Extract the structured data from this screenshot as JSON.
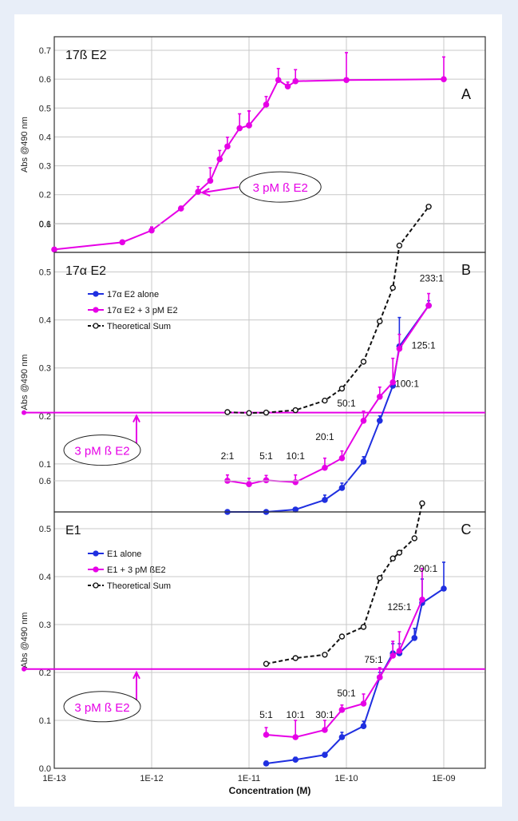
{
  "colors": {
    "background": "#e8eef8",
    "magenta": "#e600e6",
    "blue": "#1f2fe0",
    "black": "#111111",
    "grid": "#c8c8c8"
  },
  "figure": {
    "ylabel": "Abs @490 nm",
    "xlabel": "Concentration (M)",
    "x_ticks": [
      "1E-13",
      "1E-12",
      "1E-11",
      "1E-10",
      "1E-09"
    ],
    "y_tick_labels": {
      "A": [
        "0.1",
        "0.2",
        "0.3",
        "0.4",
        "0.5",
        "0.6",
        "0.7"
      ],
      "B": [
        "0.1",
        "0.2",
        "0.3",
        "0.4",
        "0.5",
        "0.6"
      ],
      "C": [
        "0.0",
        "0.1",
        "0.2",
        "0.3",
        "0.4",
        "0.5",
        "0.6"
      ]
    }
  },
  "chart_data": [
    {
      "type": "line",
      "panel_letter": "A",
      "title": "17ß E2",
      "ylabel": "Abs @490 nm",
      "xscale": "log",
      "xlim": [
        1e-13,
        1e-09
      ],
      "ylim": [
        0,
        0.7
      ],
      "grid": true,
      "series": [
        {
          "color": "#e600e6",
          "x": [
            1e-13,
            5e-13,
            1e-12,
            2e-12,
            3e-12,
            4e-12,
            5e-12,
            6e-12,
            8e-12,
            1e-11,
            1e-11,
            1.5e-11,
            2e-11,
            2.5e-11,
            3e-11,
            1e-10,
            1e-09
          ],
          "y": [
            0.01,
            0.035,
            0.076,
            0.152,
            0.21,
            0.248,
            0.323,
            0.367,
            0.43,
            0.44,
            0.44,
            0.512,
            0.597,
            0.575,
            0.593,
            0.597,
            0.6
          ],
          "err": [
            0,
            0,
            0.012,
            0.008,
            0.018,
            0.045,
            0.03,
            0.032,
            0.05,
            0.05,
            0.05,
            0.028,
            0.04,
            0.015,
            0.04,
            0.095,
            0.077
          ]
        }
      ],
      "annotations": [
        {
          "text": "3 pM ß E2",
          "points_to": [
            3e-12,
            0.21
          ]
        }
      ]
    },
    {
      "type": "line",
      "panel_letter": "B",
      "title": "17α E2",
      "ylabel": "Abs @490 nm",
      "xscale": "log",
      "xlim": [
        1e-13,
        1e-09
      ],
      "ylim": [
        0,
        0.7
      ],
      "grid": true,
      "legend_position": "top-left",
      "baseline": {
        "y": 0.207,
        "label": "3 pM ß E2"
      },
      "series": [
        {
          "name": "17α E2 alone",
          "color": "#1f2fe0",
          "x": [
            6e-12,
            1.5e-11,
            3e-11,
            6e-11,
            9e-11,
            1.5e-10,
            2.2e-10,
            3e-10,
            3.5e-10,
            7e-10
          ],
          "y": [
            0.0,
            0.0,
            0.005,
            0.025,
            0.05,
            0.105,
            0.19,
            0.263,
            0.345,
            0.43
          ],
          "err": [
            0,
            0,
            0,
            0.01,
            0.01,
            0.01,
            0.01,
            0.01,
            0.06,
            0.01
          ]
        },
        {
          "name": "17α E2 + 3 pM E2",
          "color": "#e600e6",
          "x": [
            6e-12,
            1e-11,
            1.5e-11,
            3e-11,
            6e-11,
            9e-11,
            1.5e-10,
            2.2e-10,
            3e-10,
            3.5e-10,
            7e-10
          ],
          "y": [
            0.065,
            0.058,
            0.066,
            0.062,
            0.092,
            0.112,
            0.19,
            0.24,
            0.27,
            0.34,
            0.43
          ],
          "err": [
            0.012,
            0.012,
            0.01,
            0.015,
            0.02,
            0.015,
            0.02,
            0.02,
            0.05,
            0.03,
            0.025
          ]
        },
        {
          "name": "Theoretical Sum",
          "color": "#111111",
          "x": [
            6e-12,
            1e-11,
            1.5e-11,
            3e-11,
            6e-11,
            9e-11,
            1.5e-10,
            2.2e-10,
            3e-10,
            3.5e-10,
            7e-10
          ],
          "y": [
            0.208,
            0.206,
            0.207,
            0.212,
            0.232,
            0.257,
            0.313,
            0.397,
            0.467,
            0.555,
            0.636
          ]
        }
      ],
      "ratio_labels": [
        {
          "text": "2:1",
          "at": [
            6e-12,
            0.11
          ]
        },
        {
          "text": "5:1",
          "at": [
            1.5e-11,
            0.11
          ]
        },
        {
          "text": "10:1",
          "at": [
            3e-11,
            0.11
          ]
        },
        {
          "text": "20:1",
          "at": [
            6e-11,
            0.15
          ]
        },
        {
          "text": "50:1",
          "at": [
            1e-10,
            0.22
          ]
        },
        {
          "text": "100:1",
          "at": [
            4.2e-10,
            0.26
          ]
        },
        {
          "text": "125:1",
          "at": [
            6.2e-10,
            0.34
          ]
        },
        {
          "text": "233:1",
          "at": [
            7.5e-10,
            0.48
          ]
        }
      ]
    },
    {
      "type": "line",
      "panel_letter": "C",
      "title": "E1",
      "ylabel": "Abs @490 nm",
      "xlabel": "Concentration (M)",
      "xscale": "log",
      "xlim": [
        1e-13,
        1e-09
      ],
      "ylim": [
        0,
        0.7
      ],
      "grid": true,
      "legend_position": "top-left",
      "baseline": {
        "y": 0.207,
        "label": "3 pM ß E2"
      },
      "series": [
        {
          "name": "E1 alone",
          "color": "#1f2fe0",
          "x": [
            1.5e-11,
            3e-11,
            6e-11,
            9e-11,
            1.5e-10,
            2.2e-10,
            3e-10,
            3.5e-10,
            5e-10,
            6e-10,
            1e-09
          ],
          "y": [
            0.01,
            0.018,
            0.028,
            0.065,
            0.088,
            0.19,
            0.24,
            0.24,
            0.272,
            0.345,
            0.375
          ],
          "err": [
            0.005,
            0.005,
            0.005,
            0.01,
            0.01,
            0.01,
            0.02,
            0.02,
            0.02,
            0.05,
            0.055
          ]
        },
        {
          "name": "E1 + 3 pM ßE2",
          "color": "#e600e6",
          "x": [
            1.5e-11,
            3e-11,
            6e-11,
            9e-11,
            1.5e-10,
            2.2e-10,
            3e-10,
            3.5e-10,
            6e-10
          ],
          "y": [
            0.07,
            0.065,
            0.08,
            0.122,
            0.135,
            0.19,
            0.235,
            0.245,
            0.352
          ],
          "err": [
            0.015,
            0.035,
            0.02,
            0.01,
            0.02,
            0.02,
            0.03,
            0.04,
            0.065
          ]
        },
        {
          "name": "Theoretical Sum",
          "color": "#111111",
          "x": [
            1.5e-11,
            3e-11,
            6e-11,
            9e-11,
            1.5e-10,
            2.2e-10,
            3e-10,
            3.5e-10,
            5e-10,
            6e-10
          ],
          "y": [
            0.218,
            0.23,
            0.237,
            0.275,
            0.295,
            0.397,
            0.438,
            0.45,
            0.48,
            0.553
          ]
        }
      ],
      "ratio_labels": [
        {
          "text": "5:1",
          "at": [
            1.5e-11,
            0.105
          ]
        },
        {
          "text": "10:1",
          "at": [
            3e-11,
            0.105
          ]
        },
        {
          "text": "30:1",
          "at": [
            6e-11,
            0.105
          ]
        },
        {
          "text": "50:1",
          "at": [
            1e-10,
            0.15
          ]
        },
        {
          "text": "75:1",
          "at": [
            1.9e-10,
            0.22
          ]
        },
        {
          "text": "125:1",
          "at": [
            3.5e-10,
            0.33
          ]
        },
        {
          "text": "200:1",
          "at": [
            6.5e-10,
            0.41
          ]
        }
      ]
    }
  ]
}
